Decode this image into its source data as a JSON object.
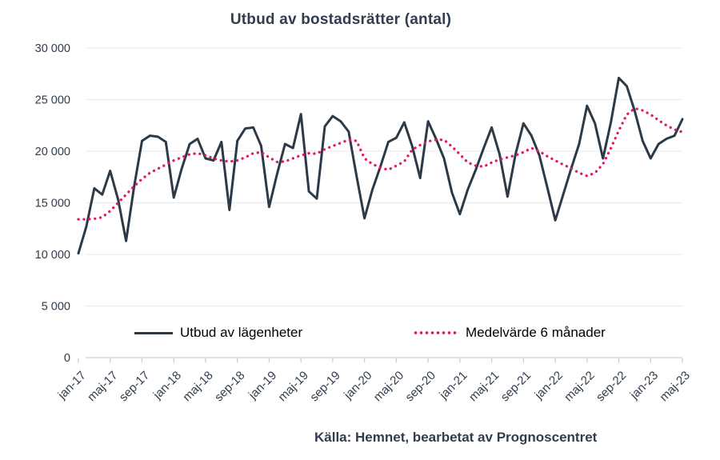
{
  "title": "Utbud av bostadsrätter (antal)",
  "source": "Källa: Hemnet, bearbetat av Prognoscentret",
  "colors": {
    "line": "#2c3947",
    "average": "#e41a61",
    "text": "#313d4d",
    "legend_text": "#000000",
    "gridline": "#ececec",
    "axis_line": "#d8d8d8",
    "tick": "#c9c9c9"
  },
  "chart_data": {
    "type": "line",
    "title": "Utbud av bostadsrätter (antal)",
    "xlabel": "",
    "ylabel": "",
    "ylim": [
      0,
      30000
    ],
    "grid": "horizontal",
    "legend_position": "inside-bottom",
    "ytick_values": [
      0,
      5000,
      10000,
      15000,
      20000,
      25000,
      30000
    ],
    "ytick_labels": [
      "0",
      "5 000",
      "10 000",
      "15 000",
      "20 000",
      "25 000",
      "30 000"
    ],
    "x_tick_every": 4,
    "x_tick_labels": [
      "jan-17",
      "maj-17",
      "sep-17",
      "jan-18",
      "maj-18",
      "sep-18",
      "jan-19",
      "maj-19",
      "sep-19",
      "jan-20",
      "maj-20",
      "sep-20",
      "jan-21",
      "maj-21",
      "sep-21",
      "jan-22",
      "maj-22",
      "sep-22",
      "jan-23"
    ],
    "x": [
      "jan-17",
      "feb-17",
      "mar-17",
      "apr-17",
      "maj-17",
      "jun-17",
      "jul-17",
      "aug-17",
      "sep-17",
      "okt-17",
      "nov-17",
      "dec-17",
      "jan-18",
      "feb-18",
      "mar-18",
      "apr-18",
      "maj-18",
      "jun-18",
      "jul-18",
      "aug-18",
      "sep-18",
      "okt-18",
      "nov-18",
      "dec-18",
      "jan-19",
      "feb-19",
      "mar-19",
      "apr-19",
      "maj-19",
      "jun-19",
      "jul-19",
      "aug-19",
      "sep-19",
      "okt-19",
      "nov-19",
      "dec-19",
      "jan-20",
      "feb-20",
      "mar-20",
      "apr-20",
      "maj-20",
      "jun-20",
      "jul-20",
      "aug-20",
      "sep-20",
      "okt-20",
      "nov-20",
      "dec-20",
      "jan-21",
      "feb-21",
      "mar-21",
      "apr-21",
      "maj-21",
      "jun-21",
      "jul-21",
      "aug-21",
      "sep-21",
      "okt-21",
      "nov-21",
      "dec-21",
      "jan-22",
      "feb-22",
      "mar-22",
      "apr-22",
      "maj-22",
      "jun-22",
      "jul-22",
      "aug-22",
      "sep-22",
      "okt-22",
      "nov-22",
      "dec-22",
      "jan-23",
      "feb-23",
      "mar-23",
      "apr-23",
      "maj-23"
    ],
    "series": [
      {
        "name": "Utbud av lägenheter",
        "style": "solid",
        "color": "#2c3947",
        "values": [
          10100,
          12700,
          16400,
          15800,
          18100,
          15300,
          11300,
          16500,
          21000,
          21500,
          21400,
          20900,
          15500,
          18300,
          20700,
          21200,
          19300,
          19100,
          20900,
          14300,
          21000,
          22200,
          22300,
          20500,
          14600,
          17800,
          20700,
          20300,
          23600,
          16100,
          15400,
          22400,
          23400,
          22900,
          21900,
          17600,
          13500,
          16300,
          18500,
          20900,
          21300,
          22800,
          20500,
          17400,
          22900,
          21200,
          19300,
          16000,
          13900,
          16300,
          18200,
          20300,
          22300,
          19700,
          15600,
          19700,
          22700,
          21500,
          19600,
          16500,
          13300,
          15800,
          18300,
          20700,
          24400,
          22700,
          19300,
          22800,
          27100,
          26300,
          23900,
          21000,
          19300,
          20700,
          21200,
          21500,
          23100
        ]
      },
      {
        "name": "Medelvärde 6 månader",
        "style": "dotted",
        "color": "#e41a61",
        "values": [
          13400,
          13400,
          13450,
          13600,
          14200,
          15000,
          15800,
          16600,
          17300,
          17900,
          18300,
          18700,
          19100,
          19400,
          19700,
          19800,
          19600,
          19300,
          19100,
          19000,
          19100,
          19400,
          19800,
          19900,
          19400,
          18950,
          19000,
          19300,
          19600,
          19800,
          19750,
          20200,
          20500,
          20800,
          21100,
          21000,
          19300,
          18750,
          18400,
          18200,
          18600,
          19000,
          20150,
          20600,
          20950,
          21100,
          21100,
          20450,
          19700,
          18900,
          18600,
          18500,
          18900,
          19200,
          19400,
          19600,
          19900,
          20300,
          20000,
          19500,
          19100,
          18700,
          18350,
          17900,
          17600,
          17900,
          18750,
          20300,
          22000,
          23550,
          24150,
          23950,
          23550,
          23000,
          22500,
          22100,
          21850
        ]
      }
    ]
  }
}
